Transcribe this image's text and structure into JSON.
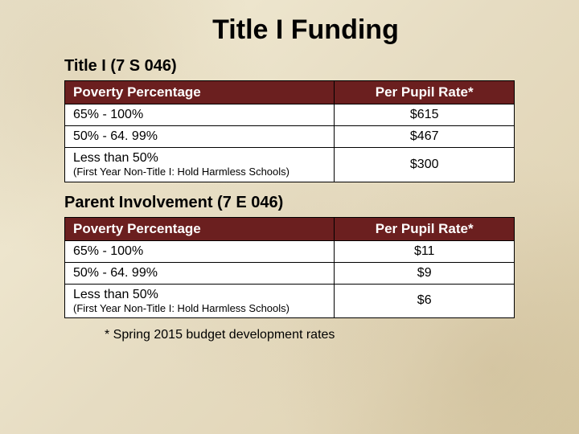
{
  "title": "Title I Funding",
  "footnote": "* Spring 2015 budget development rates",
  "colors": {
    "header_bg": "#6b1f1f",
    "header_text": "#ffffff",
    "cell_bg": "#ffffff",
    "cell_text": "#000000",
    "border": "#000000"
  },
  "sections": [
    {
      "heading": "Title I (7 S 046)",
      "columns": [
        "Poverty Percentage",
        "Per Pupil Rate*"
      ],
      "rows": [
        {
          "poverty": "65% - 100%",
          "sub": "",
          "rate": "$615"
        },
        {
          "poverty": "50% - 64. 99%",
          "sub": "",
          "rate": "$467"
        },
        {
          "poverty": "Less than 50%",
          "sub": "(First Year Non-Title I: Hold Harmless Schools)",
          "rate": "$300"
        }
      ]
    },
    {
      "heading": "Parent Involvement (7 E 046)",
      "columns": [
        "Poverty Percentage",
        "Per Pupil Rate*"
      ],
      "rows": [
        {
          "poverty": "65% - 100%",
          "sub": "",
          "rate": "$11"
        },
        {
          "poverty": "50% - 64. 99%",
          "sub": "",
          "rate": "$9"
        },
        {
          "poverty": "Less than 50%",
          "sub": "(First Year Non-Title I: Hold Harmless Schools)",
          "rate": "$6"
        }
      ]
    }
  ]
}
